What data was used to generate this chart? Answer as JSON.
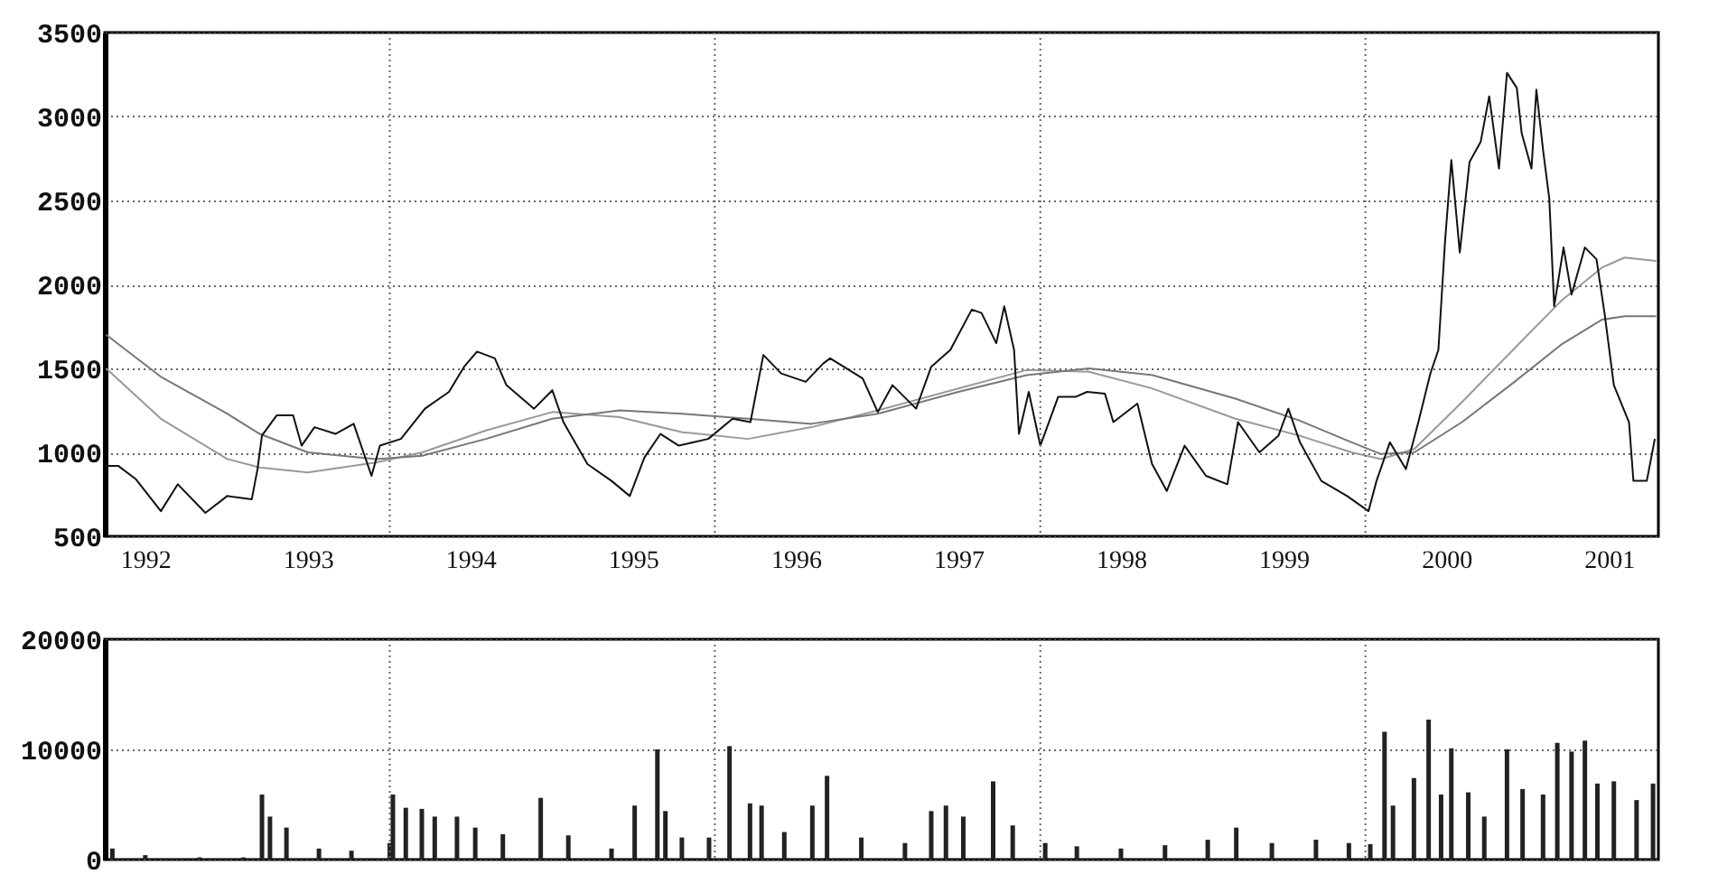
{
  "chart_data": [
    {
      "type": "line",
      "xlim": [
        "1992-04-01",
        "2001-10-20"
      ],
      "ylim": [
        500,
        3500
      ],
      "yticks": [
        500,
        1000,
        1500,
        2000,
        2500,
        3000,
        3500
      ],
      "grid": true,
      "xticks": [
        {
          "value": "1992-07-01",
          "label": "1992"
        },
        {
          "value": "1993-07-01",
          "label": "1993"
        },
        {
          "value": "1994-01-01",
          "label": null
        },
        {
          "value": "1994-07-01",
          "label": "1994"
        },
        {
          "value": "1995-07-01",
          "label": "1995"
        },
        {
          "value": "1996-01-01",
          "label": null
        },
        {
          "value": "1996-07-01",
          "label": "1996"
        },
        {
          "value": "1997-07-01",
          "label": "1997"
        },
        {
          "value": "1998-01-01",
          "label": null
        },
        {
          "value": "1998-07-01",
          "label": "1998"
        },
        {
          "value": "1999-07-01",
          "label": "1999"
        },
        {
          "value": "2000-01-01",
          "label": null
        },
        {
          "value": "2000-07-01",
          "label": "2000"
        },
        {
          "value": "2001-07-01",
          "label": "2001"
        }
      ],
      "series": [
        {
          "color": "#999999",
          "x": [
            "1992-04-04",
            "1992-08-05",
            "1993-01-01",
            "1993-03-15",
            "1993-07-01",
            "1993-12-01",
            "1994-03-15",
            "1994-08-05",
            "1995-01-01",
            "1995-06-01",
            "1995-10-20",
            "1996-03-15",
            "1996-08-05",
            "1997-01-01",
            "1997-07-01",
            "1997-12-01",
            "1998-04-20",
            "1998-09-10",
            "1999-03-15",
            "1999-08-05",
            "1999-12-01",
            "2000-02-05",
            "2000-04-20",
            "2000-08-05",
            "2000-12-01",
            "2001-03-15",
            "2001-06-15",
            "2001-08-05",
            "2001-10-15"
          ],
          "values": [
            1500,
            1200,
            960,
            910,
            880,
            940,
            1000,
            1130,
            1240,
            1210,
            1120,
            1080,
            1150,
            1250,
            1380,
            1490,
            1480,
            1380,
            1200,
            1100,
            1000,
            960,
            1020,
            1300,
            1620,
            1900,
            2100,
            2160,
            2140
          ]
        },
        {
          "color": "#777777",
          "x": [
            "1992-04-04",
            "1992-08-05",
            "1993-01-01",
            "1993-03-15",
            "1993-07-01",
            "1993-12-01",
            "1994-03-15",
            "1994-08-05",
            "1995-01-01",
            "1995-06-01",
            "1995-10-20",
            "1996-03-15",
            "1996-08-05",
            "1997-01-01",
            "1997-07-01",
            "1997-12-01",
            "1998-04-20",
            "1998-09-10",
            "1999-03-15",
            "1999-08-05",
            "1999-12-01",
            "2000-02-05",
            "2000-04-20",
            "2000-08-05",
            "2000-12-01",
            "2001-03-15",
            "2001-06-15",
            "2001-08-05",
            "2001-10-15"
          ],
          "values": [
            1700,
            1450,
            1230,
            1110,
            1000,
            960,
            980,
            1080,
            1200,
            1250,
            1230,
            1200,
            1170,
            1230,
            1360,
            1460,
            1500,
            1460,
            1320,
            1190,
            1060,
            990,
            1000,
            1180,
            1420,
            1640,
            1790,
            1810,
            1810
          ]
        },
        {
          "color": "#111111",
          "x": [
            "1992-04-04",
            "1992-05-01",
            "1992-06-10",
            "1992-08-05",
            "1992-09-12",
            "1992-11-13",
            "1993-01-01",
            "1993-02-25",
            "1993-03-10",
            "1993-03-20",
            "1993-04-22",
            "1993-05-29",
            "1993-06-17",
            "1993-07-16",
            "1993-09-01",
            "1993-10-12",
            "1993-11-21",
            "1993-12-10",
            "1994-01-26",
            "1994-03-21",
            "1994-05-14",
            "1994-06-17",
            "1994-07-16",
            "1994-08-25",
            "1994-09-20",
            "1994-11-21",
            "1995-01-01",
            "1995-01-26",
            "1995-03-21",
            "1995-05-14",
            "1995-06-24",
            "1995-07-27",
            "1995-09-01",
            "1995-10-12",
            "1995-12-17",
            "1996-02-10",
            "1996-03-21",
            "1996-04-19",
            "1996-05-29",
            "1996-07-23",
            "1996-09-01",
            "1996-09-16",
            "1996-11-28",
            "1997-01-01",
            "1997-02-03",
            "1997-03-28",
            "1997-05-01",
            "1997-06-13",
            "1997-07-31",
            "1997-08-22",
            "1997-09-24",
            "1997-10-12",
            "1997-11-03",
            "1997-11-14",
            "1997-12-06",
            "1998-01-01",
            "1998-02-10",
            "1998-03-21",
            "1998-04-16",
            "1998-05-26",
            "1998-06-14",
            "1998-08-07",
            "1998-09-09",
            "1998-10-12",
            "1998-11-21",
            "1999-01-08",
            "1999-02-25",
            "1999-03-21",
            "1999-05-08",
            "1999-06-20",
            "1999-07-12",
            "1999-08-07",
            "1999-09-24",
            "1999-11-21",
            "2000-01-08",
            "2000-01-26",
            "2000-02-25",
            "2000-04-01",
            "2000-04-29",
            "2000-05-26",
            "2000-06-13",
            "2000-06-28",
            "2000-07-12",
            "2000-07-31",
            "2000-08-22",
            "2000-09-16",
            "2000-10-05",
            "2000-10-27",
            "2000-11-14",
            "2000-12-06",
            "2000-12-17",
            "2001-01-08",
            "2001-01-19",
            "2001-02-03",
            "2001-02-17",
            "2001-02-28",
            "2001-03-21",
            "2001-04-08",
            "2001-05-08",
            "2001-06-03",
            "2001-06-21",
            "2001-07-12",
            "2001-08-15",
            "2001-08-25",
            "2001-09-24",
            "2001-10-12"
          ],
          "values": [
            920,
            920,
            840,
            650,
            810,
            640,
            740,
            720,
            900,
            1100,
            1220,
            1220,
            1040,
            1150,
            1110,
            1170,
            860,
            1040,
            1080,
            1260,
            1360,
            1510,
            1600,
            1560,
            1400,
            1260,
            1370,
            1180,
            930,
            830,
            740,
            970,
            1110,
            1040,
            1080,
            1200,
            1180,
            1580,
            1470,
            1420,
            1530,
            1560,
            1440,
            1240,
            1400,
            1260,
            1510,
            1610,
            1850,
            1830,
            1650,
            1870,
            1610,
            1110,
            1360,
            1040,
            1330,
            1330,
            1360,
            1350,
            1180,
            1290,
            930,
            770,
            1040,
            860,
            810,
            1180,
            1000,
            1100,
            1260,
            1060,
            830,
            740,
            650,
            830,
            1060,
            900,
            1180,
            1470,
            1610,
            2260,
            2740,
            2190,
            2730,
            2850,
            3120,
            2690,
            3260,
            3170,
            2900,
            2690,
            3160,
            2800,
            2510,
            1870,
            2220,
            1940,
            2220,
            2150,
            1830,
            1400,
            1180,
            830,
            830,
            1080
          ]
        }
      ]
    },
    {
      "type": "bar",
      "color": "#222222",
      "xlim": [
        "1992-04-01",
        "2001-10-20"
      ],
      "ylim": [
        0,
        20000
      ],
      "yticks": [
        0,
        10000,
        20000
      ],
      "grid": true,
      "tick_labels": "y",
      "xticks": [
        {
          "value": "1994-01-01",
          "label": null
        },
        {
          "value": "1996-01-01",
          "label": null
        },
        {
          "value": "1998-01-01",
          "label": null
        },
        {
          "value": "2000-01-01",
          "label": null
        }
      ],
      "x": [
        "1992-04-18",
        "1992-07-01",
        "1992-10-31",
        "1993-02-06",
        "1993-03-20",
        "1993-04-07",
        "1993-05-14",
        "1993-07-26",
        "1993-10-07",
        "1994-01-01",
        "1994-01-08",
        "1994-02-06",
        "1994-03-14",
        "1994-04-12",
        "1994-06-01",
        "1994-07-12",
        "1994-09-12",
        "1994-12-06",
        "1995-02-06",
        "1995-05-14",
        "1995-07-05",
        "1995-08-25",
        "1995-09-12",
        "1995-10-19",
        "1995-12-19",
        "1996-02-03",
        "1996-03-20",
        "1996-04-15",
        "1996-06-05",
        "1996-08-07",
        "1996-09-09",
        "1996-11-25",
        "1997-03-03",
        "1997-05-01",
        "1997-06-03",
        "1997-07-12",
        "1997-09-17",
        "1997-10-31",
        "1998-01-12",
        "1998-03-24",
        "1998-07-01",
        "1998-10-08",
        "1999-01-12",
        "1999-03-17",
        "1999-06-05",
        "1999-09-12",
        "1999-11-25",
        "2000-01-12",
        "2000-02-13",
        "2000-03-03",
        "2000-04-19",
        "2000-05-22",
        "2000-06-19",
        "2000-07-12",
        "2000-08-19",
        "2000-09-24",
        "2000-11-14",
        "2000-12-19",
        "2001-02-03",
        "2001-03-07",
        "2001-04-08",
        "2001-05-08",
        "2001-06-05",
        "2001-07-12",
        "2001-09-01",
        "2001-10-08"
      ],
      "values": [
        1000,
        400,
        200,
        200,
        5900,
        3900,
        2900,
        1000,
        800,
        1500,
        5900,
        4700,
        4600,
        3900,
        3900,
        2900,
        2300,
        5600,
        2200,
        1000,
        4900,
        10000,
        4400,
        2000,
        2000,
        10300,
        5100,
        4900,
        2500,
        4900,
        7600,
        2000,
        1500,
        4400,
        4900,
        3900,
        7100,
        3100,
        1500,
        1200,
        1000,
        1300,
        1800,
        2900,
        1500,
        1800,
        1500,
        1400,
        11600,
        4900,
        7400,
        12700,
        5900,
        10100,
        6100,
        3900,
        10000,
        6400,
        5900,
        10600,
        9800,
        10800,
        6900,
        7100,
        5400,
        6900
      ]
    }
  ]
}
